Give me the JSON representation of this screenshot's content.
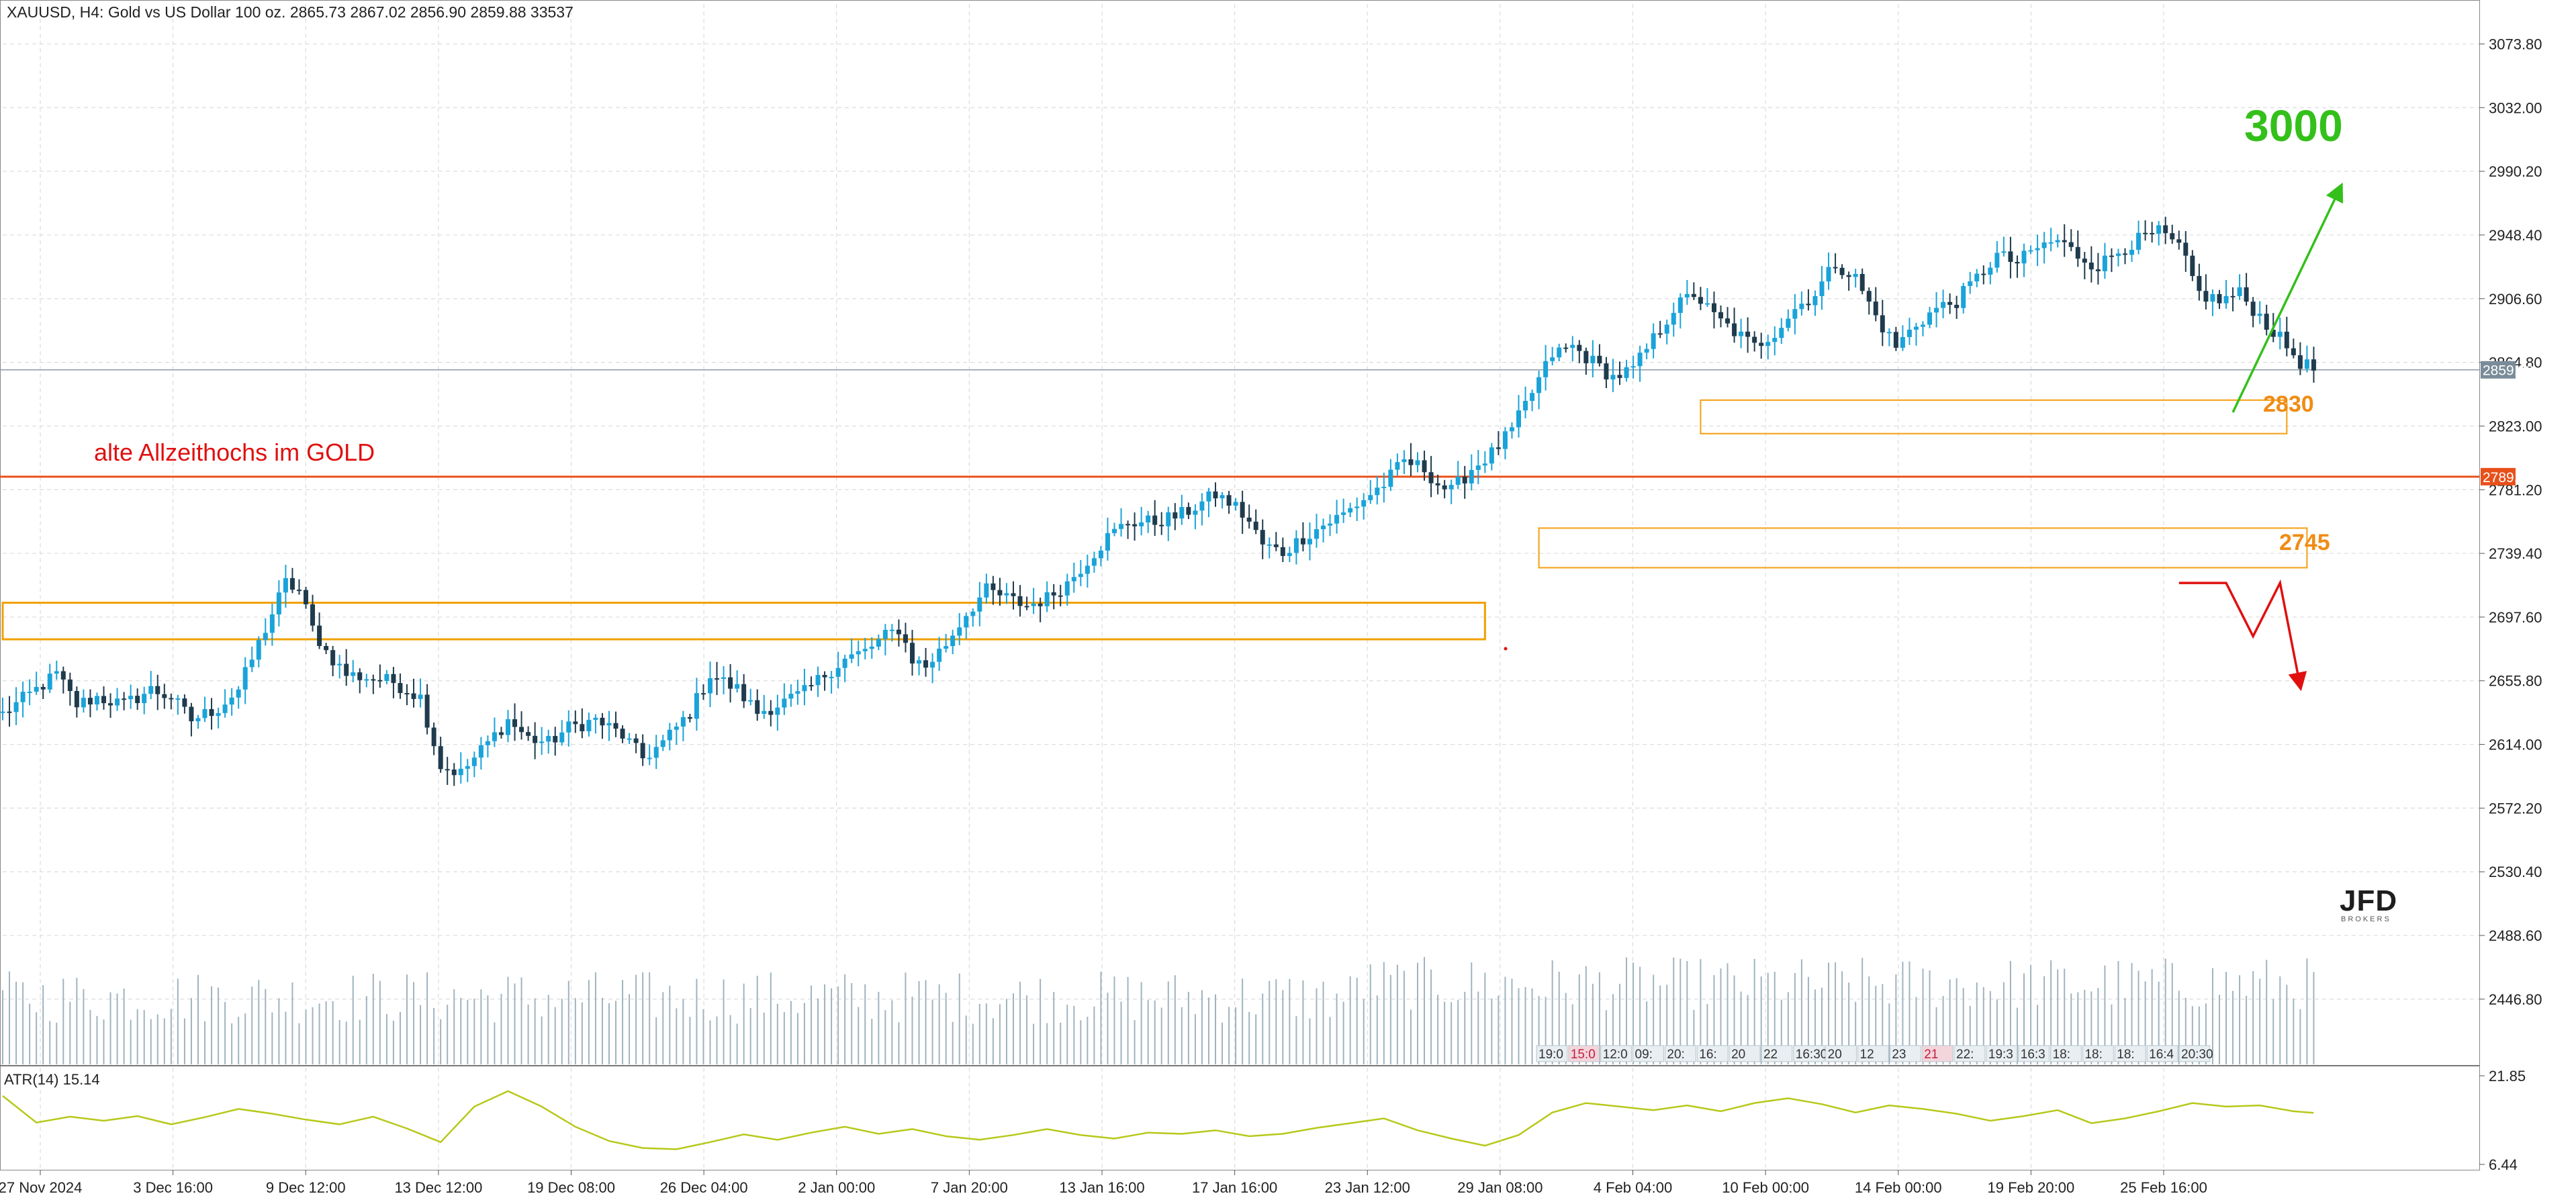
{
  "header": {
    "text": "XAUUSD, H4:  Gold vs US Dollar 100 oz.  2865.73 2867.02 2856.90 2859.88  33537"
  },
  "colors": {
    "bull": "#1aa3d9",
    "bear": "#1f3b4d",
    "grid": "#dcdcdc",
    "resistance_line": "#e8501a",
    "zone_orange": "#f5a623",
    "zone_gold": "#f0a000",
    "target_up": "#34c01a",
    "target_down": "#e01010",
    "atr_line": "#b7c81a",
    "volume": "#9fb3bf"
  },
  "chart_data": {
    "type": "candlestick",
    "symbol": "XAUUSD",
    "timeframe": "H4",
    "ylim": [
      2404,
      3100
    ],
    "y_ticks": [
      "3073.80",
      "3032.00",
      "2990.20",
      "2948.40",
      "2906.60",
      "2864.80",
      "2823.00",
      "2781.20",
      "2739.40",
      "2697.60",
      "2655.80",
      "2614.00",
      "2572.20",
      "2530.40",
      "2488.60",
      "2446.80"
    ],
    "x_ticks": [
      "27 Nov 2024",
      "3 Dec 16:00",
      "9 Dec 12:00",
      "13 Dec 12:00",
      "19 Dec 08:00",
      "26 Dec 04:00",
      "2 Jan 00:00",
      "7 Jan 20:00",
      "13 Jan 16:00",
      "17 Jan 16:00",
      "23 Jan 12:00",
      "29 Jan 08:00",
      "4 Feb 04:00",
      "10 Feb 00:00",
      "14 Feb 00:00",
      "19 Feb 20:00",
      "25 Feb 16:00"
    ],
    "close_path": [
      [
        0,
        2634
      ],
      [
        5,
        2650
      ],
      [
        8,
        2660
      ],
      [
        11,
        2640
      ],
      [
        14,
        2645
      ],
      [
        18,
        2640
      ],
      [
        22,
        2650
      ],
      [
        25,
        2645
      ],
      [
        28,
        2630
      ],
      [
        32,
        2638
      ],
      [
        35,
        2650
      ],
      [
        39,
        2690
      ],
      [
        42,
        2720
      ],
      [
        44,
        2715
      ],
      [
        46,
        2690
      ],
      [
        48,
        2675
      ],
      [
        51,
        2660
      ],
      [
        54,
        2658
      ],
      [
        58,
        2655
      ],
      [
        62,
        2645
      ],
      [
        65,
        2600
      ],
      [
        68,
        2595
      ],
      [
        71,
        2610
      ],
      [
        75,
        2630
      ],
      [
        78,
        2618
      ],
      [
        81,
        2615
      ],
      [
        84,
        2625
      ],
      [
        88,
        2630
      ],
      [
        92,
        2620
      ],
      [
        95,
        2605
      ],
      [
        98,
        2615
      ],
      [
        102,
        2635
      ],
      [
        105,
        2660
      ],
      [
        109,
        2650
      ],
      [
        112,
        2635
      ],
      [
        115,
        2640
      ],
      [
        119,
        2648
      ],
      [
        122,
        2660
      ],
      [
        125,
        2670
      ],
      [
        128,
        2675
      ],
      [
        131,
        2685
      ],
      [
        133,
        2690
      ],
      [
        135,
        2670
      ],
      [
        137,
        2665
      ],
      [
        140,
        2680
      ],
      [
        143,
        2700
      ],
      [
        146,
        2715
      ],
      [
        149,
        2710
      ],
      [
        152,
        2705
      ],
      [
        155,
        2710
      ],
      [
        158,
        2720
      ],
      [
        161,
        2735
      ],
      [
        164,
        2750
      ],
      [
        167,
        2760
      ],
      [
        171,
        2760
      ],
      [
        175,
        2765
      ],
      [
        177,
        2770
      ],
      [
        180,
        2778
      ],
      [
        183,
        2770
      ],
      [
        185,
        2760
      ],
      [
        187,
        2745
      ],
      [
        190,
        2740
      ],
      [
        193,
        2750
      ],
      [
        196,
        2758
      ],
      [
        199,
        2765
      ],
      [
        202,
        2775
      ],
      [
        205,
        2785
      ],
      [
        208,
        2800
      ],
      [
        211,
        2795
      ],
      [
        213,
        2785
      ],
      [
        215,
        2780
      ],
      [
        218,
        2795
      ],
      [
        221,
        2805
      ],
      [
        224,
        2820
      ],
      [
        227,
        2845
      ],
      [
        230,
        2870
      ],
      [
        233,
        2875
      ],
      [
        236,
        2865
      ],
      [
        239,
        2855
      ],
      [
        242,
        2860
      ],
      [
        245,
        2880
      ],
      [
        248,
        2900
      ],
      [
        251,
        2910
      ],
      [
        254,
        2895
      ],
      [
        257,
        2885
      ],
      [
        260,
        2875
      ],
      [
        263,
        2885
      ],
      [
        266,
        2900
      ],
      [
        269,
        2910
      ],
      [
        272,
        2930
      ],
      [
        275,
        2920
      ],
      [
        278,
        2895
      ],
      [
        281,
        2875
      ],
      [
        284,
        2890
      ],
      [
        287,
        2900
      ],
      [
        290,
        2905
      ],
      [
        293,
        2920
      ],
      [
        296,
        2935
      ],
      [
        299,
        2930
      ],
      [
        302,
        2940
      ],
      [
        305,
        2945
      ],
      [
        308,
        2935
      ],
      [
        311,
        2928
      ],
      [
        314,
        2938
      ],
      [
        317,
        2945
      ],
      [
        320,
        2950
      ],
      [
        323,
        2940
      ],
      [
        326,
        2910
      ],
      [
        329,
        2905
      ],
      [
        332,
        2910
      ],
      [
        335,
        2895
      ],
      [
        338,
        2880
      ],
      [
        341,
        2865
      ],
      [
        343,
        2860
      ]
    ],
    "horizontal_lines": [
      {
        "price": 2789.76,
        "label": "alte Allzeithochs im GOLD",
        "axis_label": "2789.76"
      },
      {
        "price": 2859.89,
        "axis_label": "2859.89"
      }
    ],
    "zones": [
      {
        "id": "zone-2830",
        "from_bar": 252,
        "to_bar": 339,
        "low": 2818,
        "high": 2840,
        "label": "2830"
      },
      {
        "id": "zone-2745",
        "from_bar": 228,
        "to_bar": 342,
        "low": 2730,
        "high": 2756,
        "label": "2745"
      },
      {
        "id": "zone-old-range",
        "from_bar": 0,
        "to_bar": 220,
        "low": 2683,
        "high": 2707,
        "label": ""
      }
    ],
    "annotations": {
      "target_up": {
        "label": "3000",
        "from": [
          331,
          2832
        ],
        "to": [
          347,
          2980
        ]
      },
      "target_down": {
        "points": [
          [
            323,
            2720
          ],
          [
            330,
            2720
          ],
          [
            334,
            2685
          ],
          [
            338,
            2720
          ],
          [
            341,
            2652
          ]
        ]
      }
    },
    "atr": {
      "label": "ATR(14) 15.14",
      "ylim": [
        6.44,
        21.85
      ],
      "ticks": [
        "21.85",
        "6.44"
      ],
      "path": [
        [
          0,
          18
        ],
        [
          5,
          13.5
        ],
        [
          10,
          14.5
        ],
        [
          15,
          13.8
        ],
        [
          20,
          14.6
        ],
        [
          25,
          13.2
        ],
        [
          30,
          14.4
        ],
        [
          35,
          15.8
        ],
        [
          40,
          15
        ],
        [
          45,
          14
        ],
        [
          50,
          13.2
        ],
        [
          55,
          14.5
        ],
        [
          60,
          12.5
        ],
        [
          65,
          10.2
        ],
        [
          70,
          16.2
        ],
        [
          75,
          18.8
        ],
        [
          80,
          16.2
        ],
        [
          85,
          12.8
        ],
        [
          90,
          10.4
        ],
        [
          95,
          9.2
        ],
        [
          100,
          9
        ],
        [
          105,
          10.2
        ],
        [
          110,
          11.5
        ],
        [
          115,
          10.6
        ],
        [
          120,
          11.8
        ],
        [
          125,
          12.8
        ],
        [
          130,
          11.6
        ],
        [
          135,
          12.4
        ],
        [
          140,
          11.2
        ],
        [
          145,
          10.6
        ],
        [
          150,
          11.4
        ],
        [
          155,
          12.4
        ],
        [
          160,
          11.4
        ],
        [
          165,
          10.8
        ],
        [
          170,
          11.8
        ],
        [
          175,
          11.6
        ],
        [
          180,
          12.2
        ],
        [
          185,
          11.2
        ],
        [
          190,
          11.6
        ],
        [
          195,
          12.6
        ],
        [
          200,
          13.4
        ],
        [
          205,
          14.2
        ],
        [
          210,
          12.2
        ],
        [
          215,
          10.8
        ],
        [
          220,
          9.6
        ],
        [
          225,
          11.4
        ],
        [
          230,
          15.2
        ],
        [
          235,
          16.8
        ],
        [
          240,
          16.2
        ],
        [
          245,
          15.6
        ],
        [
          250,
          16.4
        ],
        [
          255,
          15.4
        ],
        [
          260,
          16.8
        ],
        [
          265,
          17.6
        ],
        [
          270,
          16.6
        ],
        [
          275,
          15.2
        ],
        [
          280,
          16.4
        ],
        [
          285,
          15.8
        ],
        [
          290,
          15
        ],
        [
          295,
          13.8
        ],
        [
          300,
          14.6
        ],
        [
          305,
          15.6
        ],
        [
          310,
          13.4
        ],
        [
          315,
          14.2
        ],
        [
          320,
          15.4
        ],
        [
          325,
          16.8
        ],
        [
          330,
          16.2
        ],
        [
          335,
          16.4
        ],
        [
          340,
          15.4
        ],
        [
          343,
          15.14
        ]
      ]
    },
    "session_labels": [
      "19:0",
      "15:0",
      "12:0",
      "09:",
      "20:",
      "16:",
      "20",
      "22",
      "16:30",
      "20",
      "12",
      "23",
      "21",
      "22:",
      "19:3",
      "16:3",
      "18:",
      "18:",
      "18:",
      "16:4",
      "20:30"
    ],
    "watermark": {
      "logo": "JFD",
      "sub": "BROKERS"
    }
  }
}
